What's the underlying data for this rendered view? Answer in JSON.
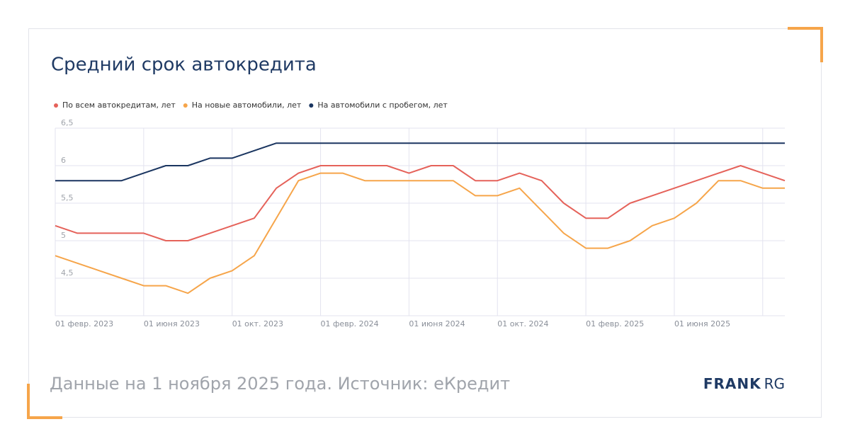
{
  "title": "Средний срок автокредита",
  "footer": "Данные на 1 ноября 2025 года. Источник: eКредит",
  "logo": [
    "FRANK",
    "RG"
  ],
  "chart_data": {
    "type": "line",
    "categories": [
      "01 февр. 2023",
      null,
      null,
      null,
      "01 июня 2023",
      null,
      null,
      null,
      "01 окт. 2023",
      null,
      null,
      null,
      "01 февр. 2024",
      null,
      null,
      null,
      "01 июня 2024",
      null,
      null,
      null,
      "01 окт. 2024",
      null,
      null,
      null,
      "01 февр. 2025",
      null,
      null,
      null,
      "01 июня 2025",
      null,
      null,
      null,
      null,
      null
    ],
    "series": [
      {
        "name": "По всем автокредитам, лет",
        "color": "#e5625a",
        "values": [
          5.2,
          5.1,
          5.1,
          5.1,
          5.1,
          5.0,
          5.0,
          5.1,
          5.2,
          5.3,
          5.7,
          5.9,
          6.0,
          6.0,
          6.0,
          6.0,
          5.9,
          6.0,
          6.0,
          5.8,
          5.8,
          5.9,
          5.8,
          5.5,
          5.3,
          5.3,
          5.5,
          5.6,
          5.7,
          5.8,
          5.9,
          6.0,
          5.9,
          5.8
        ]
      },
      {
        "name": "На новые автомобили, лет",
        "color": "#f6a54a",
        "values": [
          4.8,
          4.7,
          4.6,
          4.5,
          4.4,
          4.4,
          4.3,
          4.5,
          4.6,
          4.8,
          5.3,
          5.8,
          5.9,
          5.9,
          5.8,
          5.8,
          5.8,
          5.8,
          5.8,
          5.6,
          5.6,
          5.7,
          5.4,
          5.1,
          4.9,
          4.9,
          5.0,
          5.2,
          5.3,
          5.5,
          5.8,
          5.8,
          5.7,
          5.7
        ]
      },
      {
        "name": "На автомобили с пробегом, лет",
        "color": "#1a3560",
        "values": [
          5.8,
          5.8,
          5.8,
          5.8,
          5.9,
          6.0,
          6.0,
          6.1,
          6.1,
          6.2,
          6.3,
          6.3,
          6.3,
          6.3,
          6.3,
          6.3,
          6.3,
          6.3,
          6.3,
          6.3,
          6.3,
          6.3,
          6.3,
          6.3,
          6.3,
          6.3,
          6.3,
          6.3,
          6.3,
          6.3,
          6.3,
          6.3,
          6.3,
          6.3
        ]
      }
    ],
    "ylim": [
      4,
      6.5
    ],
    "yticks": [
      {
        "value": 6.5,
        "label": "6,5"
      },
      6,
      {
        "value": 5.5,
        "label": "5,5"
      },
      5,
      {
        "value": 4.5,
        "label": "4,5"
      }
    ],
    "grid": true
  }
}
